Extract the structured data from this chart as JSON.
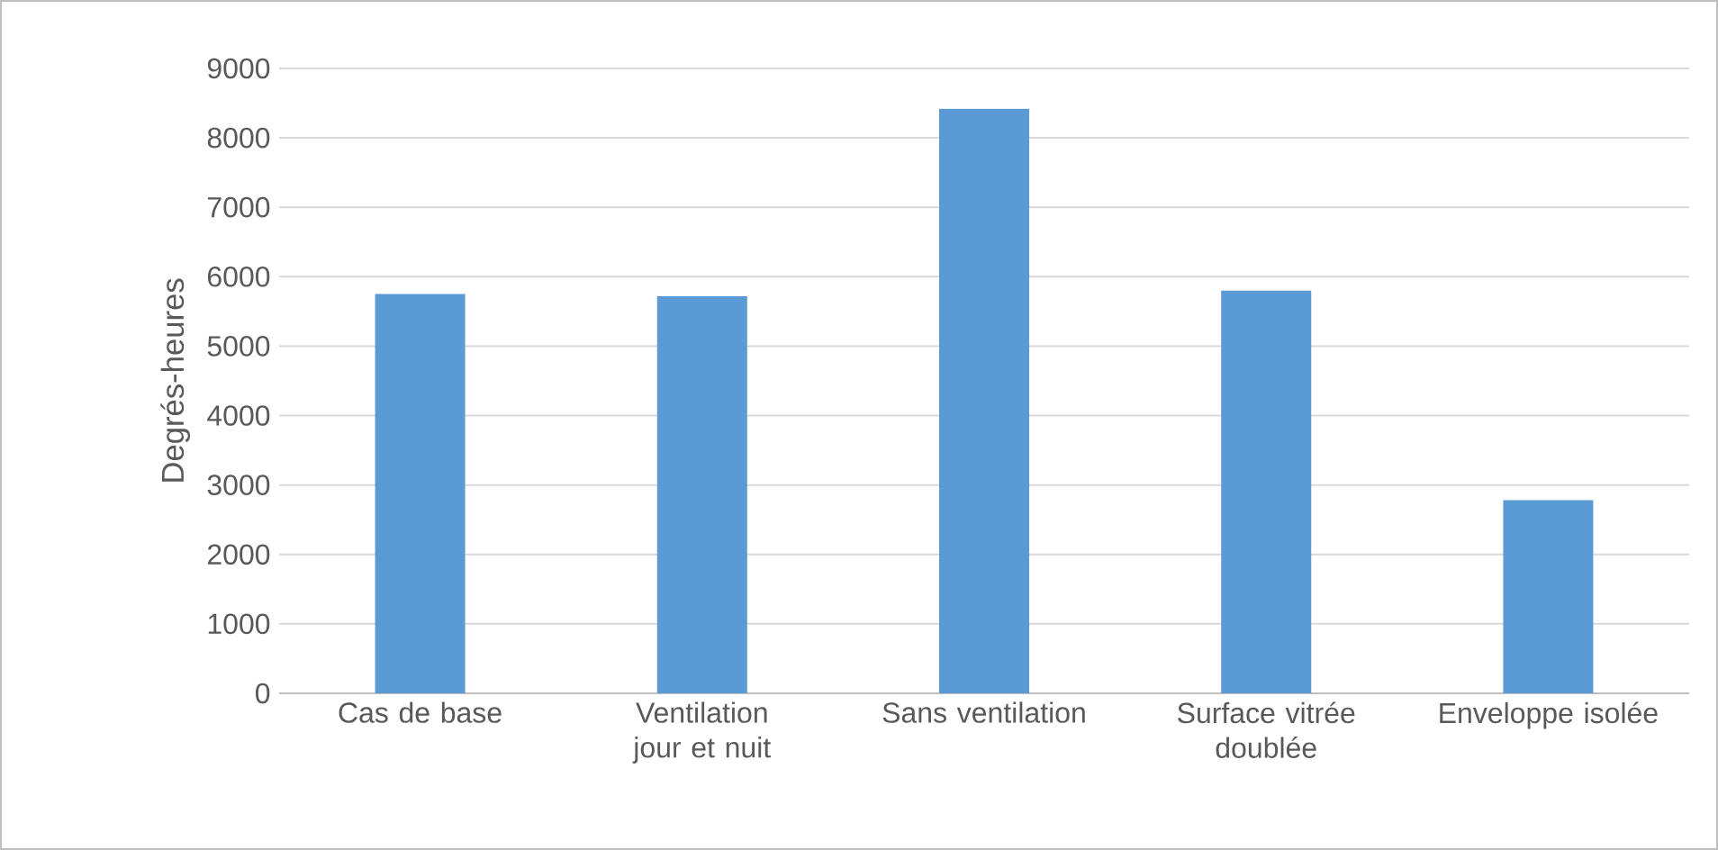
{
  "chart_data": {
    "type": "bar",
    "ylabel": "Degrés-heures",
    "categories": [
      "Cas de base",
      "Ventilation jour et nuit",
      "Sans ventilation",
      "Surface vitrée doublée",
      "Enveloppe isolée"
    ],
    "values": [
      5750,
      5720,
      8420,
      5800,
      2780
    ],
    "color": "#5b9bd5",
    "ylim": [
      0,
      9000
    ],
    "yticks": [
      0,
      1000,
      2000,
      3000,
      4000,
      5000,
      6000,
      7000,
      8000,
      9000
    ],
    "grid": "y"
  }
}
